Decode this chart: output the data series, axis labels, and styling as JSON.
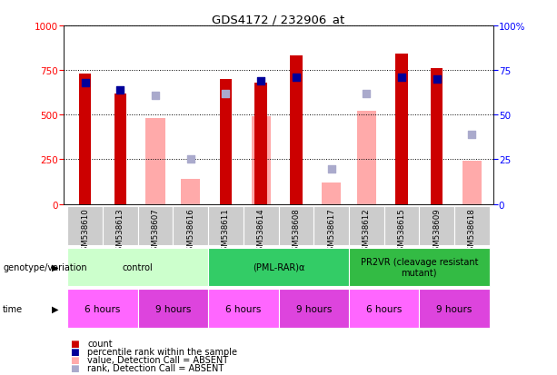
{
  "title": "GDS4172 / 232906_at",
  "samples": [
    "GSM538610",
    "GSM538613",
    "GSM538607",
    "GSM538616",
    "GSM538611",
    "GSM538614",
    "GSM538608",
    "GSM538617",
    "GSM538612",
    "GSM538615",
    "GSM538609",
    "GSM538618"
  ],
  "count_values": [
    730,
    620,
    null,
    null,
    700,
    680,
    830,
    null,
    null,
    840,
    760,
    null
  ],
  "count_absent_values": [
    null,
    null,
    480,
    140,
    null,
    490,
    null,
    120,
    520,
    null,
    null,
    240
  ],
  "percentile_values": [
    680,
    640,
    null,
    null,
    null,
    690,
    710,
    null,
    null,
    710,
    700,
    null
  ],
  "percentile_absent_values": [
    null,
    null,
    610,
    250,
    620,
    null,
    null,
    195,
    620,
    null,
    null,
    390
  ],
  "ylim_left": [
    0,
    1000
  ],
  "yticks_left": [
    0,
    250,
    500,
    750,
    1000
  ],
  "yticks_right_labels": [
    "0",
    "25",
    "50",
    "75",
    "100%"
  ],
  "colors": {
    "count_bar": "#cc0000",
    "count_absent_bar": "#ffaaaa",
    "percentile_dot": "#000099",
    "percentile_absent_dot": "#aaaacc"
  },
  "genotype_groups": [
    {
      "label": "control",
      "start": 0,
      "end": 3,
      "color": "#ccffcc"
    },
    {
      "label": "(PML-RAR)α",
      "start": 4,
      "end": 7,
      "color": "#33cc66"
    },
    {
      "label": "PR2VR (cleavage resistant\nmutant)",
      "start": 8,
      "end": 11,
      "color": "#33bb44"
    }
  ],
  "time_groups": [
    {
      "label": "6 hours",
      "start": 0,
      "end": 1,
      "color": "#ff66ff"
    },
    {
      "label": "9 hours",
      "start": 2,
      "end": 3,
      "color": "#dd44dd"
    },
    {
      "label": "6 hours",
      "start": 4,
      "end": 5,
      "color": "#ff66ff"
    },
    {
      "label": "9 hours",
      "start": 6,
      "end": 7,
      "color": "#dd44dd"
    },
    {
      "label": "6 hours",
      "start": 8,
      "end": 9,
      "color": "#ff66ff"
    },
    {
      "label": "9 hours",
      "start": 10,
      "end": 11,
      "color": "#dd44dd"
    }
  ],
  "legend_items": [
    {
      "label": "count",
      "color": "#cc0000"
    },
    {
      "label": "percentile rank within the sample",
      "color": "#000099"
    },
    {
      "label": "value, Detection Call = ABSENT",
      "color": "#ffaaaa"
    },
    {
      "label": "rank, Detection Call = ABSENT",
      "color": "#aaaacc"
    }
  ]
}
